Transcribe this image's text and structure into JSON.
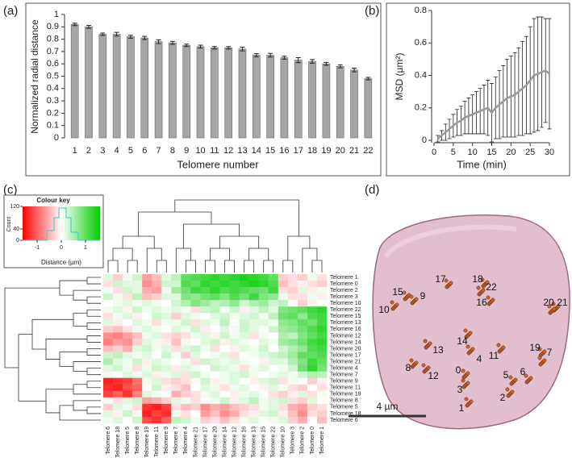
{
  "chart_data": [
    {
      "type": "bar",
      "panel_label": "(a)",
      "x_label": "Telomere number",
      "y_label": "Normalized radial distance",
      "categories": [
        "1",
        "2",
        "3",
        "4",
        "5",
        "6",
        "7",
        "8",
        "9",
        "10",
        "11",
        "12",
        "13",
        "14",
        "15",
        "16",
        "17",
        "18",
        "19",
        "20",
        "21",
        "22"
      ],
      "values": [
        0.92,
        0.9,
        0.84,
        0.84,
        0.82,
        0.81,
        0.78,
        0.77,
        0.75,
        0.74,
        0.73,
        0.73,
        0.72,
        0.67,
        0.67,
        0.65,
        0.63,
        0.62,
        0.6,
        0.58,
        0.55,
        0.48
      ],
      "errors": [
        0.01,
        0.012,
        0.01,
        0.015,
        0.012,
        0.013,
        0.015,
        0.012,
        0.01,
        0.012,
        0.01,
        0.01,
        0.015,
        0.012,
        0.015,
        0.012,
        0.02,
        0.015,
        0.012,
        0.012,
        0.015,
        0.01
      ],
      "color": "#a6a6a6",
      "ylim": [
        0,
        1
      ],
      "yticks": [
        0,
        0.1,
        0.2,
        0.3,
        0.4,
        0.5,
        0.6,
        0.7,
        0.8,
        0.9,
        1
      ]
    },
    {
      "type": "line",
      "panel_label": "(b)",
      "x_label": "Time (min)",
      "y_label": "MSD  (µm²)",
      "x": [
        1,
        2,
        3,
        4,
        5,
        6,
        7,
        8,
        9,
        10,
        11,
        12,
        13,
        14,
        15,
        16,
        17,
        18,
        19,
        20,
        21,
        22,
        23,
        24,
        25,
        26,
        27,
        28,
        29,
        30
      ],
      "values": [
        0.01,
        0.03,
        0.05,
        0.07,
        0.09,
        0.11,
        0.12,
        0.14,
        0.15,
        0.16,
        0.17,
        0.18,
        0.19,
        0.2,
        0.17,
        0.2,
        0.22,
        0.24,
        0.26,
        0.27,
        0.28,
        0.3,
        0.32,
        0.34,
        0.37,
        0.4,
        0.41,
        0.42,
        0.43,
        0.41
      ],
      "errors": [
        0.02,
        0.03,
        0.05,
        0.06,
        0.07,
        0.08,
        0.09,
        0.1,
        0.11,
        0.12,
        0.13,
        0.14,
        0.15,
        0.17,
        0.18,
        0.19,
        0.21,
        0.22,
        0.24,
        0.25,
        0.26,
        0.27,
        0.29,
        0.3,
        0.33,
        0.35,
        0.35,
        0.34,
        0.32,
        0.34
      ],
      "color": "#999999",
      "xlim": [
        0,
        30
      ],
      "xticks": [
        0,
        5,
        10,
        15,
        20,
        25,
        30
      ],
      "ylim": [
        0,
        0.8
      ],
      "yticks": [
        0,
        0.2,
        0.4,
        0.6,
        0.8
      ]
    },
    {
      "type": "heatmap",
      "panel_label": "(c)",
      "key_title": "Colour key",
      "key_x_label": "Distance (µm)",
      "key_y_label": "Count",
      "zlim": [
        -1.6,
        1.6
      ],
      "zticks": [
        -1,
        0,
        1
      ],
      "count_lim": [
        0,
        120
      ],
      "count_ticks": [
        0,
        40,
        120
      ],
      "colors": [
        "#ff0000",
        "#ffffff",
        "#00cc00"
      ],
      "rows": [
        "Telomere 1",
        "Telomere 0",
        "Telomere 2",
        "Telomere 3",
        "Telomere 10",
        "Telomere 22",
        "Telomere 15",
        "Telomere 13",
        "Telomere 16",
        "Telomere 12",
        "Telomere 14",
        "Telomere 20",
        "Telomere 17",
        "Telomere 21",
        "Telomere 4",
        "Telomere 7",
        "Telomere 9",
        "Telomere 11",
        "Telomere 19",
        "Telomere 8",
        "Telomere 5",
        "Telomere 18",
        "Telomere 6"
      ],
      "columns": [
        "Telomere 6",
        "Telomere 18",
        "Telomere 5",
        "Telomere 8",
        "Telomere 19",
        "Telomere 11",
        "Telomere 9",
        "Telomere 7",
        "Telomere 4",
        "Telomere 21",
        "Telomere 17",
        "Telomere 20",
        "Telomere 14",
        "Telomere 12",
        "Telomere 16",
        "Telomere 13",
        "Telomere 15",
        "Telomere 22",
        "Telomere 10",
        "Telomere 3",
        "Telomere 2",
        "Telomere 0",
        "Telomere 1"
      ],
      "values": [
        [
          0.2,
          -0.3,
          0.1,
          0.3,
          -0.6,
          -0.4,
          0.2,
          0.4,
          1.0,
          1.1,
          1.2,
          1.3,
          1.2,
          1.3,
          1.4,
          1.3,
          1.2,
          1.0,
          -0.3,
          -0.2,
          -0.3,
          0.1,
          -0.2
        ],
        [
          -0.2,
          0.3,
          0.2,
          0.2,
          -0.7,
          -0.5,
          0.3,
          0.3,
          1.1,
          1.0,
          1.3,
          1.2,
          1.3,
          1.2,
          1.3,
          1.4,
          1.3,
          1.1,
          -0.4,
          -0.2,
          -0.1,
          -0.2,
          -0.3
        ],
        [
          0.1,
          -0.2,
          0.3,
          0.2,
          -0.5,
          -0.6,
          0.1,
          0.6,
          0.9,
          1.2,
          1.1,
          1.3,
          1.1,
          1.2,
          1.1,
          1.0,
          0.9,
          1.2,
          -0.2,
          -0.3,
          0.2,
          -0.1,
          0.1
        ],
        [
          0.3,
          0.1,
          -0.2,
          0.4,
          -0.4,
          -0.3,
          0.2,
          0.2,
          0.8,
          0.7,
          0.9,
          1.0,
          0.8,
          1.1,
          0.9,
          1.2,
          0.8,
          0.7,
          0.1,
          -0.2,
          -0.2,
          0.1,
          -0.1
        ],
        [
          0.0,
          0.1,
          0.2,
          0.1,
          0.2,
          0.1,
          0.0,
          0.3,
          0.5,
          0.8,
          0.6,
          0.4,
          0.5,
          0.7,
          0.3,
          0.5,
          0.6,
          0.3,
          0.4,
          0.0,
          -0.3,
          -0.1,
          0.0
        ],
        [
          0.1,
          0.2,
          -0.1,
          0.3,
          0.1,
          0.2,
          0.1,
          0.2,
          0.1,
          -0.2,
          0.3,
          0.4,
          0.1,
          0.3,
          -0.1,
          0.2,
          0.4,
          0.2,
          0.8,
          0.9,
          1.0,
          1.2,
          1.3
        ],
        [
          -0.2,
          0.1,
          0.2,
          -0.1,
          0.0,
          0.3,
          0.2,
          -0.3,
          0.2,
          0.1,
          0.0,
          0.2,
          0.3,
          0.1,
          0.2,
          0.3,
          0.1,
          0.4,
          0.9,
          1.0,
          0.7,
          1.1,
          1.2
        ],
        [
          0.2,
          -0.1,
          0.0,
          0.2,
          0.1,
          -0.2,
          0.1,
          0.1,
          0.3,
          -0.2,
          0.2,
          0.1,
          0.4,
          0.0,
          0.3,
          0.2,
          0.2,
          0.1,
          0.7,
          0.8,
          1.0,
          0.9,
          1.2
        ],
        [
          -0.3,
          -0.4,
          -0.2,
          0.1,
          0.2,
          0.1,
          0.0,
          0.2,
          0.1,
          0.3,
          -0.1,
          0.0,
          0.2,
          0.1,
          0.3,
          0.2,
          0.0,
          0.3,
          0.6,
          0.7,
          0.9,
          1.1,
          1.3
        ],
        [
          -0.7,
          -0.8,
          -0.6,
          -0.4,
          0.1,
          0.2,
          -0.2,
          -0.3,
          -0.2,
          0.1,
          0.2,
          -0.1,
          0.3,
          0.1,
          0.2,
          -0.2,
          0.1,
          0.0,
          0.5,
          0.4,
          0.8,
          1.0,
          1.2
        ],
        [
          -0.8,
          -0.6,
          -0.7,
          -0.3,
          0.2,
          0.1,
          -0.1,
          -0.4,
          0.1,
          0.0,
          0.2,
          0.3,
          -0.1,
          0.2,
          0.1,
          0.0,
          0.2,
          0.1,
          0.6,
          0.7,
          0.9,
          1.2,
          1.3
        ],
        [
          -0.4,
          -0.3,
          -0.5,
          0.2,
          0.3,
          0.1,
          0.2,
          -0.2,
          0.2,
          0.3,
          0.1,
          -0.2,
          0.0,
          -0.1,
          0.2,
          0.1,
          0.3,
          0.0,
          0.3,
          0.5,
          0.7,
          1.1,
          1.2
        ],
        [
          0.3,
          0.4,
          0.2,
          0.1,
          0.2,
          0.0,
          0.3,
          0.1,
          -0.3,
          0.2,
          0.0,
          0.1,
          0.2,
          -0.2,
          0.0,
          0.1,
          0.2,
          0.3,
          0.4,
          0.6,
          1.0,
          1.0,
          1.1
        ],
        [
          0.5,
          0.2,
          0.1,
          0.3,
          -0.1,
          0.2,
          0.1,
          0.0,
          0.1,
          -0.2,
          0.3,
          0.2,
          0.1,
          0.2,
          0.1,
          0.0,
          -0.1,
          0.2,
          0.2,
          0.5,
          0.8,
          1.2,
          1.0
        ],
        [
          0.2,
          0.3,
          0.1,
          -0.2,
          0.1,
          0.3,
          0.2,
          -0.1,
          0.2,
          0.1,
          0.0,
          0.3,
          0.2,
          0.1,
          -0.2,
          0.1,
          0.2,
          0.0,
          0.1,
          0.3,
          0.9,
          1.3,
          0.9
        ],
        [
          0.1,
          0.0,
          0.2,
          0.1,
          0.2,
          -0.1,
          0.1,
          0.2,
          -0.2,
          0.3,
          0.1,
          0.0,
          0.1,
          0.2,
          0.3,
          0.1,
          0.0,
          0.1,
          0.2,
          0.1,
          0.3,
          0.5,
          0.4
        ],
        [
          -1.4,
          -1.3,
          -1.2,
          -0.9,
          0.1,
          0.2,
          -0.2,
          -0.3,
          -0.2,
          0.1,
          0.3,
          -0.1,
          0.1,
          0.2,
          0.0,
          -0.1,
          0.2,
          0.3,
          -0.2,
          0.1,
          0.0,
          -0.3,
          -0.1
        ],
        [
          -1.3,
          -1.4,
          -1.1,
          -1.0,
          0.0,
          0.3,
          -0.1,
          -0.2,
          -0.4,
          0.0,
          0.2,
          0.1,
          -0.2,
          0.1,
          0.2,
          0.0,
          -0.1,
          0.2,
          0.1,
          -0.2,
          -0.3,
          0.0,
          -0.2
        ],
        [
          -1.2,
          -1.0,
          -1.3,
          -0.8,
          0.2,
          0.1,
          0.0,
          -0.5,
          -0.3,
          -0.2,
          0.1,
          0.2,
          0.0,
          -0.1,
          0.1,
          0.2,
          0.0,
          -0.2,
          -0.3,
          -0.1,
          0.2,
          -0.2,
          0.1
        ],
        [
          0.1,
          -0.2,
          0.2,
          0.3,
          -0.6,
          -0.5,
          -0.3,
          0.2,
          0.1,
          -0.2,
          0.0,
          0.1,
          0.3,
          -0.1,
          0.2,
          0.4,
          0.1,
          0.2,
          0.3,
          -0.2,
          -0.3,
          0.2,
          0.0
        ],
        [
          -0.3,
          0.2,
          0.1,
          -0.2,
          -1.3,
          -1.4,
          -1.2,
          -0.2,
          -0.4,
          -0.3,
          -0.7,
          -0.5,
          -0.6,
          -0.4,
          -0.3,
          -0.2,
          0.1,
          0.2,
          -0.2,
          -0.5,
          -0.6,
          -0.3,
          -0.2
        ],
        [
          0.2,
          -0.1,
          0.3,
          0.1,
          -1.4,
          -1.2,
          -1.3,
          0.1,
          -0.2,
          0.0,
          -0.6,
          -0.4,
          -0.7,
          -0.5,
          -0.2,
          -0.1,
          0.2,
          0.3,
          -0.1,
          -0.4,
          -0.7,
          -0.2,
          -0.3
        ],
        [
          0.1,
          0.2,
          0.0,
          0.3,
          -1.1,
          -1.3,
          -1.0,
          0.4,
          0.3,
          0.1,
          -0.3,
          -0.2,
          -0.4,
          -0.2,
          0.1,
          0.2,
          0.0,
          0.1,
          0.2,
          -0.3,
          -0.5,
          0.0,
          -0.4
        ]
      ]
    }
  ],
  "image": {
    "panel_label": "(d)",
    "scale_bar": "4 µm",
    "labels": [
      "15",
      "10",
      "9",
      "17",
      "18",
      "22",
      "16",
      "20",
      "21",
      "13",
      "14",
      "11",
      "19",
      "7",
      "4",
      "8",
      "12",
      "0",
      "5",
      "6",
      "3",
      "2",
      "1"
    ]
  }
}
